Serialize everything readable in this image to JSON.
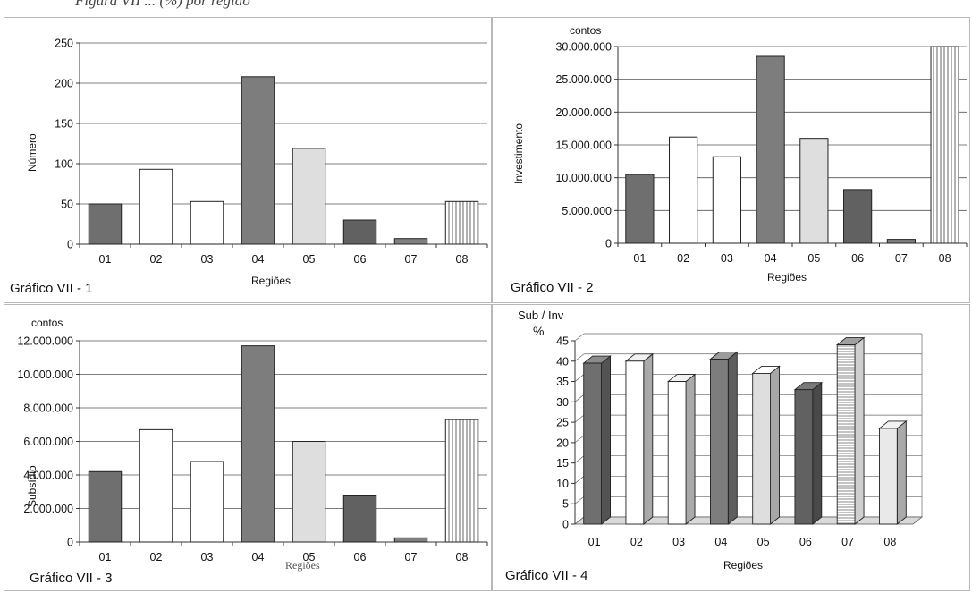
{
  "page_caption": "Figura VII ... (%) por região",
  "colors": {
    "r01": "#6f6f6f",
    "r02": "#ffffff",
    "r03": "#ffffff",
    "r04": "#7d7d7d",
    "r05": "#dedede",
    "r06": "#616161",
    "r07": "#808080",
    "r08": "#ffffff",
    "axis": "#333333",
    "grid": "#555555"
  },
  "chart_data": [
    {
      "type": "bar",
      "caption": "Gráfico VII - 1",
      "unit": "",
      "ylabel": "Número",
      "xlabel": "Regiões",
      "categories": [
        "01",
        "02",
        "03",
        "04",
        "05",
        "06",
        "07",
        "08"
      ],
      "values": [
        50,
        93,
        53,
        208,
        119,
        30,
        7,
        53
      ],
      "ylim": [
        0,
        250
      ],
      "yticks": [
        0,
        50,
        100,
        150,
        200,
        250
      ],
      "ytick_labels": [
        "0",
        "50",
        "100",
        "150",
        "200",
        "250"
      ],
      "grid": true
    },
    {
      "type": "bar",
      "caption": "Gráfico VII - 2",
      "unit": "contos",
      "ylabel": "Investimento",
      "xlabel": "Regiões",
      "categories": [
        "01",
        "02",
        "03",
        "04",
        "05",
        "06",
        "07",
        "08"
      ],
      "values": [
        10500000,
        16200000,
        13200000,
        28500000,
        16000000,
        8200000,
        600000,
        30000000
      ],
      "ylim": [
        0,
        30000000
      ],
      "yticks": [
        0,
        5000000,
        10000000,
        15000000,
        20000000,
        25000000,
        30000000
      ],
      "ytick_labels": [
        "0",
        "5.000.000",
        "10.000.000",
        "15.000.000",
        "20.000.000",
        "25.000.000",
        "30.000.000"
      ],
      "grid": true
    },
    {
      "type": "bar",
      "caption": "Gráfico VII - 3",
      "unit": "contos",
      "ylabel": "Subsídio",
      "xlabel": "Regiões",
      "categories": [
        "01",
        "02",
        "03",
        "04",
        "05",
        "06",
        "07",
        "08"
      ],
      "values": [
        4200000,
        6700000,
        4800000,
        11700000,
        6000000,
        2800000,
        250000,
        7300000
      ],
      "ylim": [
        0,
        12000000
      ],
      "yticks": [
        0,
        2000000,
        4000000,
        6000000,
        8000000,
        10000000,
        12000000
      ],
      "ytick_labels": [
        "0",
        "2.000.000",
        "4.000.000",
        "6.000.000",
        "8.000.000",
        "10.000.000",
        "12.000.000"
      ],
      "grid": true
    },
    {
      "type": "bar",
      "caption": "Gráfico VII - 4",
      "unit": "Sub / Inv",
      "unit2": "%",
      "ylabel": "",
      "xlabel": "Regiões",
      "three_d": true,
      "categories": [
        "01",
        "02",
        "03",
        "04",
        "05",
        "06",
        "07",
        "08"
      ],
      "values": [
        39.5,
        40,
        35,
        40.5,
        37,
        33,
        44,
        23.5
      ],
      "ylim": [
        0,
        45
      ],
      "yticks": [
        0,
        5,
        10,
        15,
        20,
        25,
        30,
        35,
        40,
        45
      ],
      "ytick_labels": [
        "0",
        "5",
        "10",
        "15",
        "20",
        "25",
        "30",
        "35",
        "40",
        "45"
      ],
      "grid": true
    }
  ]
}
